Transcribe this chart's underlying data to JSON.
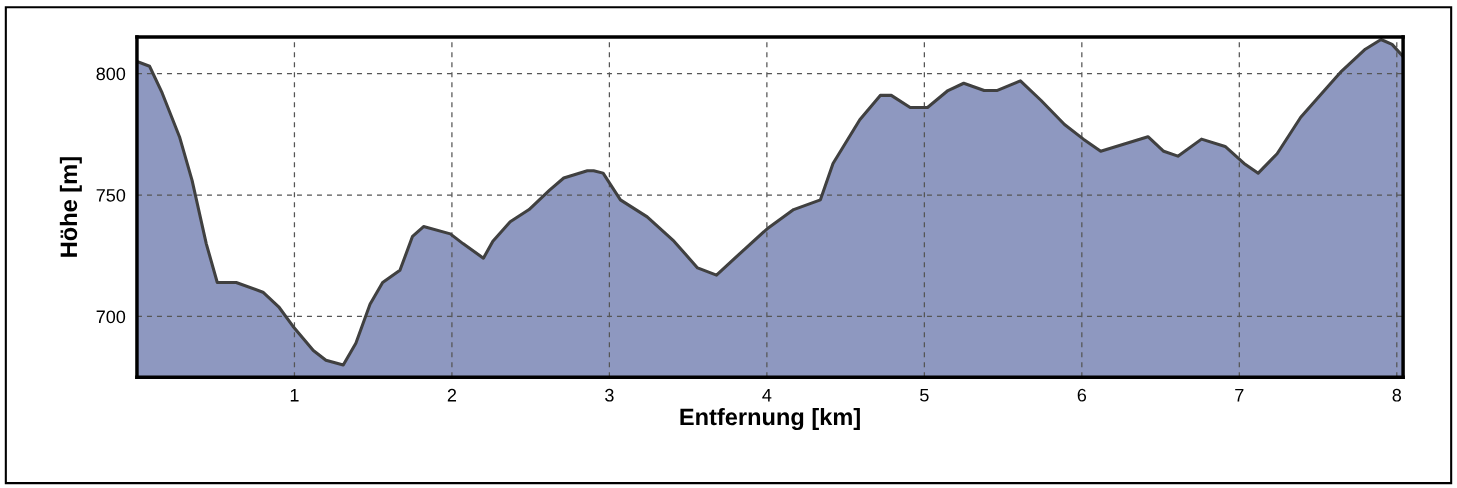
{
  "chart_data": {
    "type": "area",
    "xlabel": "Entfernung [km]",
    "ylabel": "Höhe [m]",
    "xlim": [
      0,
      8.04
    ],
    "ylim": [
      675,
      815
    ],
    "xticks": [
      1,
      2,
      3,
      4,
      5,
      6,
      7,
      8
    ],
    "yticks": [
      700,
      750,
      800
    ],
    "grid": true,
    "line_style": "solid",
    "series": [
      {
        "color": "#8e98c0",
        "x": [
          0,
          0.08,
          0.16,
          0.27,
          0.35,
          0.44,
          0.51,
          0.63,
          0.8,
          0.9,
          0.99,
          1.12,
          1.2,
          1.31,
          1.39,
          1.48,
          1.56,
          1.67,
          1.75,
          1.82,
          1.99,
          2.07,
          2.2,
          2.26,
          2.37,
          2.49,
          2.62,
          2.71,
          2.86,
          2.9,
          2.96,
          3.07,
          3.24,
          3.41,
          3.56,
          3.68,
          3.83,
          4.0,
          4.17,
          4.34,
          4.42,
          4.59,
          4.72,
          4.79,
          4.91,
          5.02,
          5.15,
          5.25,
          5.38,
          5.46,
          5.61,
          5.74,
          5.89,
          6.01,
          6.12,
          6.27,
          6.42,
          6.52,
          6.61,
          6.76,
          6.91,
          7.03,
          7.12,
          7.24,
          7.39,
          7.54,
          7.65,
          7.8,
          7.9,
          7.97,
          8.04
        ],
        "values": [
          805,
          803,
          792,
          774,
          756,
          730,
          714,
          714,
          710,
          704,
          696,
          686,
          682,
          680,
          689,
          705,
          714,
          719,
          733,
          737,
          734,
          730,
          724,
          731,
          739,
          744,
          752,
          757,
          760,
          760,
          759,
          748,
          741,
          731,
          720,
          717,
          726,
          736,
          744,
          748,
          763,
          781,
          791,
          791,
          786,
          786,
          793,
          796,
          793,
          793,
          797,
          789,
          779,
          773,
          768,
          771,
          774,
          768,
          766,
          773,
          770,
          763,
          759,
          767,
          782,
          793,
          801,
          810,
          814,
          812,
          807
        ]
      }
    ]
  }
}
